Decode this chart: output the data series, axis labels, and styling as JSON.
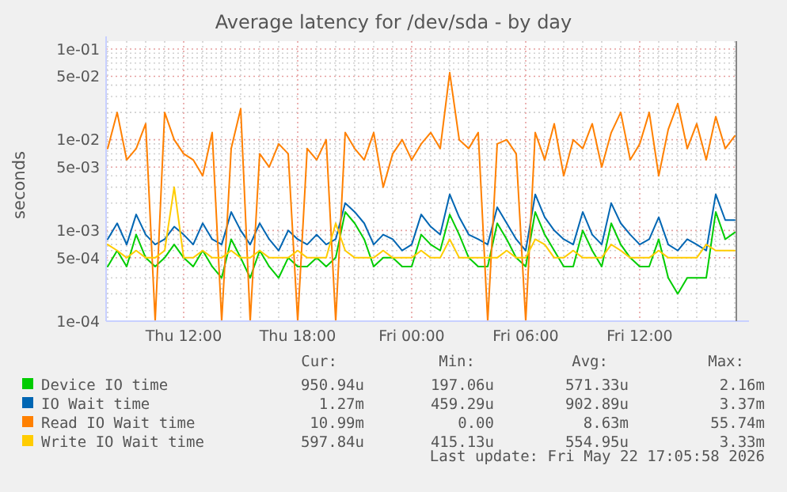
{
  "chart_data": {
    "type": "line",
    "title": "Average latency for /dev/sda - by day",
    "ylabel": "seconds",
    "log": "y",
    "grid": true,
    "legend": "bottom",
    "line_style": "solid",
    "xlim": [
      "2026-05-21T07:55",
      "2026-05-22T17:05"
    ],
    "ylim": [
      0.0001,
      0.1
    ],
    "yticks": [
      {
        "value": 0.0001,
        "label": "1e-04"
      },
      {
        "value": 0.0002,
        "label": null
      },
      {
        "value": 0.0003,
        "label": null
      },
      {
        "value": 0.0004,
        "label": null
      },
      {
        "value": 0.0005,
        "label": "5e-04"
      },
      {
        "value": 0.0006,
        "label": null
      },
      {
        "value": 0.0007,
        "label": null
      },
      {
        "value": 0.0008,
        "label": null
      },
      {
        "value": 0.0009,
        "label": null
      },
      {
        "value": 0.001,
        "label": "1e-03"
      },
      {
        "value": 0.002,
        "label": null
      },
      {
        "value": 0.003,
        "label": null
      },
      {
        "value": 0.004,
        "label": null
      },
      {
        "value": 0.005,
        "label": "5e-03"
      },
      {
        "value": 0.006,
        "label": null
      },
      {
        "value": 0.007,
        "label": null
      },
      {
        "value": 0.008,
        "label": null
      },
      {
        "value": 0.009,
        "label": null
      },
      {
        "value": 0.01,
        "label": "1e-02"
      },
      {
        "value": 0.02,
        "label": null
      },
      {
        "value": 0.03,
        "label": null
      },
      {
        "value": 0.04,
        "label": null
      },
      {
        "value": 0.05,
        "label": "5e-02"
      },
      {
        "value": 0.06,
        "label": null
      },
      {
        "value": 0.07,
        "label": null
      },
      {
        "value": 0.08,
        "label": null
      },
      {
        "value": 0.09,
        "label": null
      },
      {
        "value": 0.1,
        "label": "1e-01"
      }
    ],
    "xticks": [
      {
        "value": "2026-05-21T08:00",
        "label": null
      },
      {
        "value": "2026-05-21T09:00",
        "label": null
      },
      {
        "value": "2026-05-21T10:00",
        "label": null
      },
      {
        "value": "2026-05-21T11:00",
        "label": null
      },
      {
        "value": "2026-05-21T12:00",
        "label": "Thu 12:00"
      },
      {
        "value": "2026-05-21T13:00",
        "label": null
      },
      {
        "value": "2026-05-21T14:00",
        "label": null
      },
      {
        "value": "2026-05-21T15:00",
        "label": null
      },
      {
        "value": "2026-05-21T16:00",
        "label": null
      },
      {
        "value": "2026-05-21T17:00",
        "label": null
      },
      {
        "value": "2026-05-21T18:00",
        "label": "Thu 18:00"
      },
      {
        "value": "2026-05-21T19:00",
        "label": null
      },
      {
        "value": "2026-05-21T20:00",
        "label": null
      },
      {
        "value": "2026-05-21T21:00",
        "label": null
      },
      {
        "value": "2026-05-21T22:00",
        "label": null
      },
      {
        "value": "2026-05-21T23:00",
        "label": null
      },
      {
        "value": "2026-05-22T00:00",
        "label": "Fri 00:00"
      },
      {
        "value": "2026-05-22T01:00",
        "label": null
      },
      {
        "value": "2026-05-22T02:00",
        "label": null
      },
      {
        "value": "2026-05-22T03:00",
        "label": null
      },
      {
        "value": "2026-05-22T04:00",
        "label": null
      },
      {
        "value": "2026-05-22T05:00",
        "label": null
      },
      {
        "value": "2026-05-22T06:00",
        "label": "Fri 06:00"
      },
      {
        "value": "2026-05-22T07:00",
        "label": null
      },
      {
        "value": "2026-05-22T08:00",
        "label": null
      },
      {
        "value": "2026-05-22T09:00",
        "label": null
      },
      {
        "value": "2026-05-22T10:00",
        "label": null
      },
      {
        "value": "2026-05-22T11:00",
        "label": null
      },
      {
        "value": "2026-05-22T12:00",
        "label": "Fri 12:00"
      },
      {
        "value": "2026-05-22T13:00",
        "label": null
      },
      {
        "value": "2026-05-22T14:00",
        "label": null
      },
      {
        "value": "2026-05-22T15:00",
        "label": null
      },
      {
        "value": "2026-05-22T16:00",
        "label": null
      },
      {
        "value": "2026-05-22T17:00",
        "label": null
      }
    ],
    "x": [
      "2026-05-21T08:00",
      "2026-05-21T08:30",
      "2026-05-21T09:00",
      "2026-05-21T09:30",
      "2026-05-21T10:00",
      "2026-05-21T10:30",
      "2026-05-21T11:00",
      "2026-05-21T11:30",
      "2026-05-21T12:00",
      "2026-05-21T12:30",
      "2026-05-21T13:00",
      "2026-05-21T13:30",
      "2026-05-21T14:00",
      "2026-05-21T14:30",
      "2026-05-21T15:00",
      "2026-05-21T15:30",
      "2026-05-21T16:00",
      "2026-05-21T16:30",
      "2026-05-21T17:00",
      "2026-05-21T17:30",
      "2026-05-21T18:00",
      "2026-05-21T18:30",
      "2026-05-21T19:00",
      "2026-05-21T19:30",
      "2026-05-21T20:00",
      "2026-05-21T20:30",
      "2026-05-21T21:00",
      "2026-05-21T21:30",
      "2026-05-21T22:00",
      "2026-05-21T22:30",
      "2026-05-21T23:00",
      "2026-05-21T23:30",
      "2026-05-22T00:00",
      "2026-05-22T00:30",
      "2026-05-22T01:00",
      "2026-05-22T01:30",
      "2026-05-22T02:00",
      "2026-05-22T02:30",
      "2026-05-22T03:00",
      "2026-05-22T03:30",
      "2026-05-22T04:00",
      "2026-05-22T04:30",
      "2026-05-22T05:00",
      "2026-05-22T05:30",
      "2026-05-22T06:00",
      "2026-05-22T06:30",
      "2026-05-22T07:00",
      "2026-05-22T07:30",
      "2026-05-22T08:00",
      "2026-05-22T08:30",
      "2026-05-22T09:00",
      "2026-05-22T09:30",
      "2026-05-22T10:00",
      "2026-05-22T10:30",
      "2026-05-22T11:00",
      "2026-05-22T11:30",
      "2026-05-22T12:00",
      "2026-05-22T12:30",
      "2026-05-22T13:00",
      "2026-05-22T13:30",
      "2026-05-22T14:00",
      "2026-05-22T14:30",
      "2026-05-22T15:00",
      "2026-05-22T15:30",
      "2026-05-22T16:00",
      "2026-05-22T16:30",
      "2026-05-22T17:00"
    ],
    "series": [
      {
        "name": "Device IO time",
        "color": "#00cc00",
        "values": [
          0.0004,
          0.0006,
          0.0004,
          0.0009,
          0.0005,
          0.0004,
          0.0005,
          0.0007,
          0.0005,
          0.0004,
          0.0006,
          0.0004,
          0.0003,
          0.0008,
          0.0005,
          0.0003,
          0.0006,
          0.0004,
          0.0003,
          0.0005,
          0.0004,
          0.0004,
          0.0005,
          0.0004,
          0.0005,
          0.0016,
          0.0012,
          0.0008,
          0.0004,
          0.0005,
          0.0005,
          0.0004,
          0.0004,
          0.0009,
          0.0007,
          0.0006,
          0.0015,
          0.0009,
          0.0005,
          0.0004,
          0.0004,
          0.0012,
          0.0008,
          0.0005,
          0.0004,
          0.0016,
          0.0009,
          0.0006,
          0.0004,
          0.0004,
          0.001,
          0.0006,
          0.0004,
          0.0012,
          0.0007,
          0.0005,
          0.0004,
          0.0004,
          0.0008,
          0.0003,
          0.0002,
          0.0003,
          0.0003,
          0.0003,
          0.0016,
          0.0008,
          0.00095
        ]
      },
      {
        "name": "IO Wait time",
        "color": "#0066b3",
        "values": [
          0.0008,
          0.0012,
          0.0007,
          0.0015,
          0.0009,
          0.0007,
          0.0008,
          0.0011,
          0.0009,
          0.0007,
          0.0012,
          0.0008,
          0.0007,
          0.0016,
          0.001,
          0.0007,
          0.0012,
          0.0008,
          0.0006,
          0.001,
          0.0008,
          0.0007,
          0.0009,
          0.0007,
          0.0008,
          0.002,
          0.0016,
          0.0012,
          0.0007,
          0.0009,
          0.0008,
          0.0006,
          0.0007,
          0.0015,
          0.0011,
          0.0009,
          0.0025,
          0.0014,
          0.0009,
          0.0008,
          0.0007,
          0.0018,
          0.0012,
          0.0008,
          0.0006,
          0.0025,
          0.0014,
          0.001,
          0.0008,
          0.0007,
          0.0016,
          0.0009,
          0.0007,
          0.002,
          0.0012,
          0.0009,
          0.0007,
          0.0008,
          0.0014,
          0.0007,
          0.0006,
          0.0008,
          0.0007,
          0.0006,
          0.0025,
          0.0013,
          0.0013
        ]
      },
      {
        "name": "Read IO Wait time",
        "color": "#ff8000",
        "values": [
          0.008,
          0.02,
          0.006,
          0.008,
          0.015,
          0.0001,
          0.02,
          0.01,
          0.007,
          0.006,
          0.004,
          0.012,
          0.0001,
          0.008,
          0.022,
          0.0001,
          0.007,
          0.005,
          0.009,
          0.007,
          0.0001,
          0.008,
          0.006,
          0.01,
          0.0001,
          0.012,
          0.008,
          0.006,
          0.012,
          0.003,
          0.007,
          0.01,
          0.006,
          0.009,
          0.012,
          0.008,
          0.055,
          0.01,
          0.008,
          0.012,
          0.0001,
          0.009,
          0.01,
          0.007,
          0.0001,
          0.012,
          0.006,
          0.015,
          0.004,
          0.01,
          0.008,
          0.015,
          0.005,
          0.012,
          0.02,
          0.006,
          0.009,
          0.02,
          0.004,
          0.013,
          0.025,
          0.008,
          0.015,
          0.006,
          0.018,
          0.008,
          0.011
        ]
      },
      {
        "name": "Write IO Wait time",
        "color": "#ffcc00",
        "values": [
          0.0007,
          0.0006,
          0.0005,
          0.0006,
          0.0005,
          0.0005,
          0.0006,
          0.003,
          0.0005,
          0.0005,
          0.0006,
          0.0005,
          0.0005,
          0.0006,
          0.0005,
          0.0005,
          0.0006,
          0.0005,
          0.0005,
          0.0005,
          0.0006,
          0.0005,
          0.0005,
          0.0005,
          0.0012,
          0.0006,
          0.0005,
          0.0005,
          0.0005,
          0.0006,
          0.0005,
          0.0005,
          0.0005,
          0.0006,
          0.0005,
          0.0005,
          0.0008,
          0.0005,
          0.0005,
          0.0005,
          0.0005,
          0.0005,
          0.0006,
          0.0005,
          0.0005,
          0.0008,
          0.0007,
          0.0005,
          0.0005,
          0.0006,
          0.0005,
          0.0005,
          0.0005,
          0.0007,
          0.0006,
          0.0005,
          0.0005,
          0.0005,
          0.0006,
          0.0005,
          0.0005,
          0.0005,
          0.0005,
          0.0007,
          0.0006,
          0.0006,
          0.0006
        ]
      }
    ],
    "annotations": [
      "Cur:",
      "Min:",
      "Avg:",
      "Max:",
      "950.94u",
      "197.06u",
      "571.33u",
      "2.16m",
      "1.27m",
      "459.29u",
      "902.89u",
      "3.37m",
      "10.99m",
      "0.00",
      "8.63m",
      "55.74m",
      "597.84u",
      "415.13u",
      "554.95u",
      "3.33m",
      "Last update: Fri May 22 17:05:58 2026"
    ]
  }
}
